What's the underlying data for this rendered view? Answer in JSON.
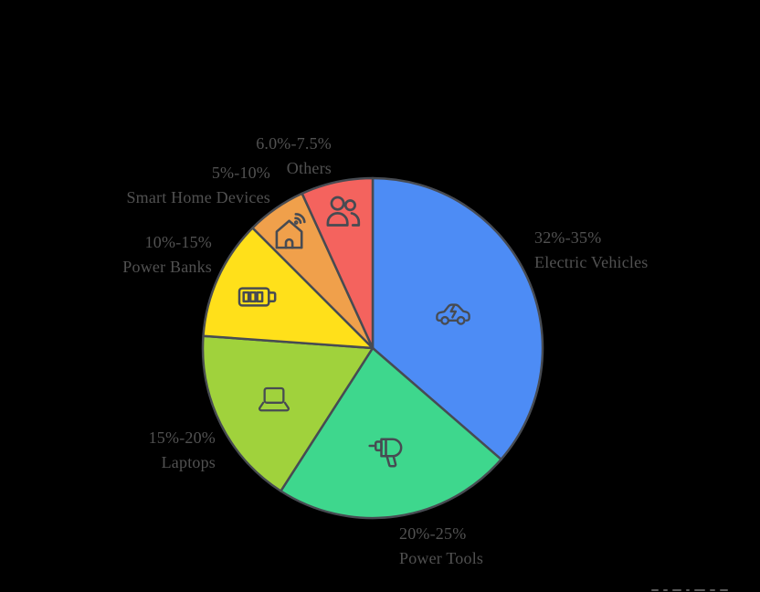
{
  "page": {
    "background": "#000000"
  },
  "chart_data": {
    "type": "pie",
    "title": "",
    "legend_position": "none",
    "start_angle_deg": 0,
    "direction": "clockwise",
    "stroke_color": "#474B52",
    "label_color": "#515151",
    "slices": [
      {
        "label": "Electric Vehicles",
        "range": "32%-35%",
        "value": 32,
        "color": "#4D8CF5",
        "icon": "ev-car-icon"
      },
      {
        "label": "Power Tools",
        "range": "20%-25%",
        "value": 20,
        "color": "#3ED78D",
        "icon": "drill-icon"
      },
      {
        "label": "Laptops",
        "range": "15%-20%",
        "value": 15,
        "color": "#A0D23C",
        "icon": "laptop-icon"
      },
      {
        "label": "Power Banks",
        "range": "10%-15%",
        "value": 10,
        "color": "#FFE01A",
        "icon": "battery-icon"
      },
      {
        "label": "Smart Home Devices",
        "range": "5%-10%",
        "value": 5,
        "color": "#F0A04B",
        "icon": "smart-home-icon"
      },
      {
        "label": "Others",
        "range": "6.0%-7.5%",
        "value": 6,
        "color": "#F4635E",
        "icon": "people-icon"
      }
    ]
  }
}
